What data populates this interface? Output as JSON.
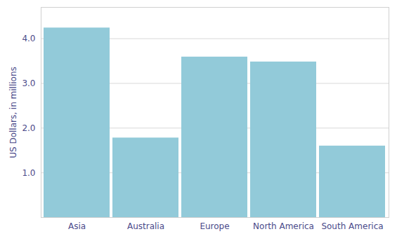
{
  "chart_data": {
    "type": "bar",
    "categories": [
      "Asia",
      "Australia",
      "Europe",
      "North America",
      "South America"
    ],
    "values": [
      4.24,
      1.78,
      3.59,
      3.48,
      1.6
    ],
    "color": "#92cad9",
    "y_label": "US Dollars, in millions",
    "ylim": [
      0,
      4.7
    ],
    "yticks": [
      1,
      2,
      3,
      4
    ],
    "grid": true
  }
}
